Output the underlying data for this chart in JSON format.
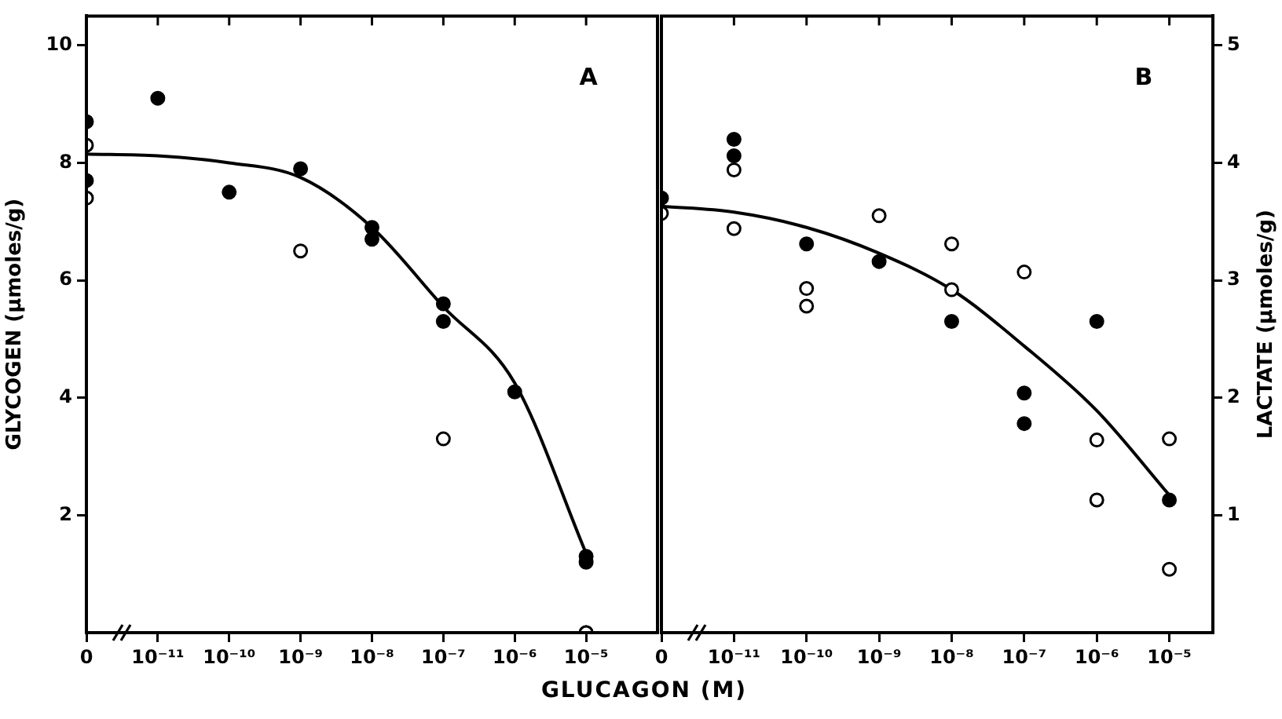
{
  "chart_data": [
    {
      "type": "scatter",
      "xlabel": "GLUCAGON (M)",
      "ylabel": "GLYCOGEN (μmoles/g)",
      "annotations": [
        "A"
      ],
      "categories": [
        "0",
        "10⁻¹¹",
        "10⁻¹⁰",
        "10⁻⁹",
        "10⁻⁸",
        "10⁻⁷",
        "10⁻⁶",
        "10⁻⁵"
      ],
      "ylim": [
        0,
        10.5
      ],
      "yticks": [
        2,
        4,
        6,
        8,
        10
      ],
      "grid": false,
      "legend": false,
      "marker": "circle",
      "series": [
        {
          "color": "#000000",
          "values": [
            8.7,
            9.1,
            7.5,
            7.9,
            6.9,
            5.6,
            4.1,
            1.3
          ]
        },
        {
          "color": "#000000",
          "values": [
            7.7,
            null,
            null,
            null,
            6.7,
            5.3,
            null,
            1.2
          ]
        },
        {
          "color": "#ffffff",
          "values": [
            8.3,
            null,
            null,
            6.5,
            null,
            3.3,
            null,
            0
          ]
        },
        {
          "color": "#ffffff",
          "values": [
            7.4,
            null,
            null,
            null,
            null,
            null,
            null,
            0
          ]
        },
        {
          "type": "line",
          "marker": "none",
          "color": "#000000",
          "values": [
            8.15,
            8.12,
            8.0,
            7.75,
            6.9,
            5.55,
            4.25,
            1.35
          ]
        }
      ]
    },
    {
      "type": "scatter",
      "y2label": "LACTATE (μmoles/g)",
      "annotations": [
        "B"
      ],
      "categories": [
        "0",
        "10⁻¹¹",
        "10⁻¹⁰",
        "10⁻⁹",
        "10⁻⁸",
        "10⁻⁷",
        "10⁻⁶",
        "10⁻⁵"
      ],
      "y2lim": [
        0,
        5.25
      ],
      "y2ticks": [
        1,
        2,
        3,
        4,
        5
      ],
      "grid": false,
      "legend": false,
      "marker": "circle",
      "series": [
        {
          "axis": "y2",
          "color": "#000000",
          "values": [
            3.7,
            4.2,
            3.31,
            3.16,
            2.65,
            2.04,
            2.65,
            1.13
          ]
        },
        {
          "axis": "y2",
          "color": "#000000",
          "values": [
            null,
            4.06,
            null,
            null,
            null,
            1.78,
            null,
            null
          ]
        },
        {
          "axis": "y2",
          "color": "#ffffff",
          "values": [
            3.57,
            3.94,
            2.93,
            3.55,
            3.31,
            3.07,
            1.64,
            1.65
          ]
        },
        {
          "axis": "y2",
          "color": "#ffffff",
          "values": [
            null,
            3.44,
            2.78,
            null,
            2.92,
            null,
            1.13,
            0.54
          ]
        },
        {
          "axis": "y2",
          "type": "line",
          "marker": "none",
          "color": "#000000",
          "values": [
            3.63,
            3.58,
            3.45,
            3.23,
            2.92,
            2.44,
            1.89,
            1.17
          ]
        }
      ]
    }
  ]
}
